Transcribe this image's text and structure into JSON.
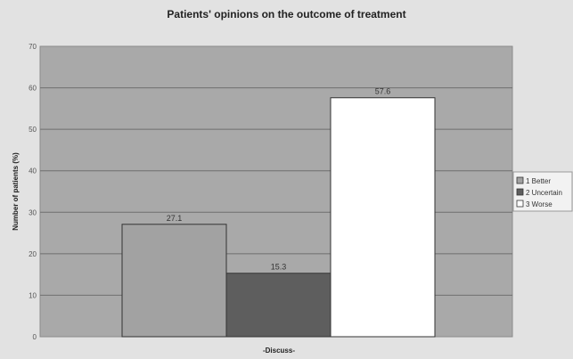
{
  "chart_data": {
    "type": "bar",
    "title": "Patients' opinions on the outcome of treatment",
    "xlabel": "-Discuss-",
    "ylabel": "Number of patients (%)",
    "ylim": [
      0,
      70
    ],
    "yticks": [
      0,
      10,
      20,
      30,
      40,
      50,
      60,
      70
    ],
    "categories": [
      ""
    ],
    "series": [
      {
        "name": "1 Better",
        "values": [
          27.1
        ],
        "label": "27.1",
        "color": "#a2a2a2"
      },
      {
        "name": "2 Uncertain",
        "values": [
          15.3
        ],
        "label": "15.3",
        "color": "#5e5e5e"
      },
      {
        "name": "3 Worse",
        "values": [
          57.6
        ],
        "label": "57.6",
        "color": "#ffffff"
      }
    ],
    "grid": true,
    "legend_position": "right",
    "colors": {
      "plot_background": "#a9a9a9",
      "page_background": "#e2e2e2",
      "gridline": "#6f6f6f"
    }
  }
}
